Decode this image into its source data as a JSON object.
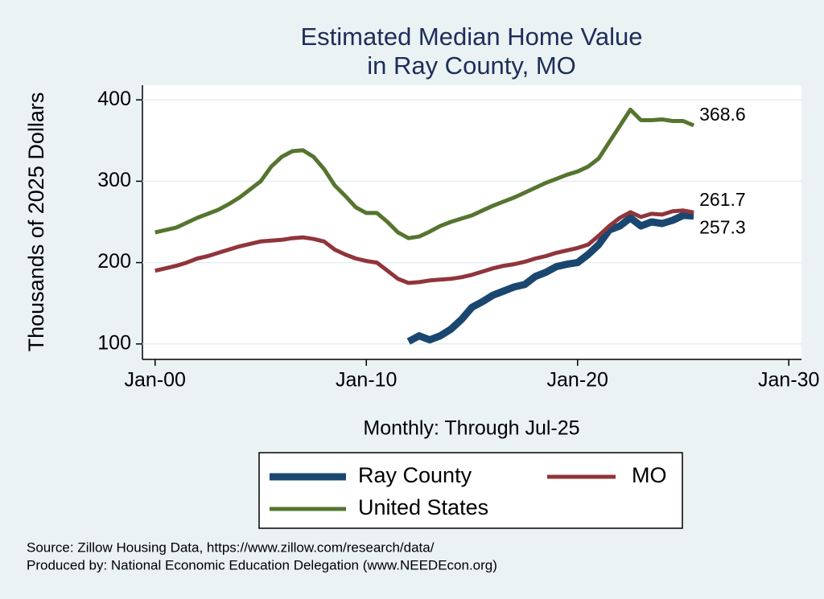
{
  "chart_data": {
    "type": "line",
    "title": "Estimated Median Home Value",
    "subtitle": "in Ray County, MO",
    "y_label": "Thousands of 2025 Dollars",
    "x_label": "Monthly: Through Jul-25",
    "notes": [
      "Source: Zillow Housing Data, https://www.zillow.com/research/data/",
      "Produced by: National Economic Education Delegation (www.NEEDEcon.org)"
    ],
    "x": [
      2000,
      2000.5,
      2001,
      2001.5,
      2002,
      2002.5,
      2003,
      2003.5,
      2004,
      2004.5,
      2005,
      2005.5,
      2006,
      2006.5,
      2007,
      2007.5,
      2008,
      2008.5,
      2009,
      2009.5,
      2010,
      2010.5,
      2011,
      2011.5,
      2012,
      2012.5,
      2013,
      2013.5,
      2014,
      2014.5,
      2015,
      2015.5,
      2016,
      2016.5,
      2017,
      2017.5,
      2018,
      2018.5,
      2019,
      2019.5,
      2020,
      2020.5,
      2021,
      2021.5,
      2022,
      2022.5,
      2023,
      2023.5,
      2024,
      2024.5,
      2025,
      2025.5
    ],
    "series": [
      {
        "name": "Ray County",
        "color": "#1a476f",
        "values": [
          null,
          null,
          null,
          null,
          null,
          null,
          null,
          null,
          null,
          null,
          null,
          null,
          null,
          null,
          null,
          null,
          null,
          null,
          null,
          null,
          null,
          null,
          null,
          null,
          103,
          110,
          105,
          110,
          118,
          130,
          145,
          152,
          160,
          165,
          170,
          173,
          183,
          188,
          195,
          198,
          200,
          210,
          222,
          240,
          245,
          255,
          245,
          250,
          248,
          252,
          258,
          257.3
        ]
      },
      {
        "name": "MO",
        "color": "#90353b",
        "values": [
          190,
          193,
          196,
          200,
          205,
          208,
          212,
          216,
          220,
          223,
          226,
          227,
          228,
          230,
          231,
          229,
          226,
          216,
          210,
          205,
          202,
          200,
          190,
          180,
          175,
          176,
          178,
          179,
          180,
          182,
          185,
          189,
          193,
          196,
          198,
          201,
          205,
          208,
          212,
          215,
          218,
          222,
          233,
          245,
          255,
          262,
          256,
          260,
          259,
          263,
          264,
          261.7
        ]
      },
      {
        "name": "United States",
        "color": "#55752f",
        "values": [
          237,
          240,
          243,
          249,
          255,
          260,
          265,
          272,
          280,
          290,
          300,
          318,
          330,
          337,
          338,
          330,
          315,
          295,
          282,
          268,
          261,
          261,
          250,
          237,
          230,
          232,
          238,
          245,
          250,
          254,
          258,
          264,
          270,
          275,
          280,
          286,
          292,
          298,
          303,
          308,
          312,
          318,
          328,
          348,
          368,
          388,
          375,
          375,
          376,
          374,
          374,
          368.6
        ]
      }
    ],
    "xlim": [
      1999.4,
      2030.6
    ],
    "xticks": [
      {
        "value": 2000,
        "label": "Jan-00"
      },
      {
        "value": 2010,
        "label": "Jan-10"
      },
      {
        "value": 2020,
        "label": "Jan-20"
      },
      {
        "value": 2030,
        "label": "Jan-30"
      }
    ],
    "ylim": [
      81,
      418
    ],
    "yticks": [
      100,
      200,
      300,
      400
    ],
    "grid": true
  }
}
